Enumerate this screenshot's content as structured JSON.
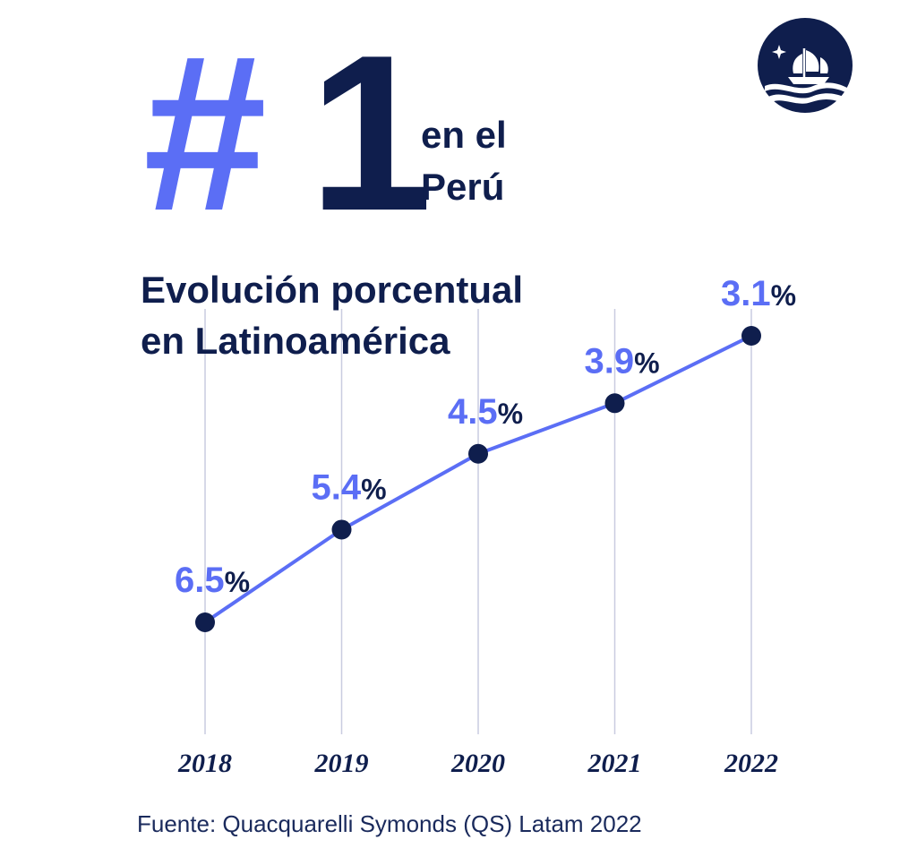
{
  "header": {
    "hash": "#",
    "rank": "1",
    "rank_line1": "en el",
    "rank_line2": "Perú"
  },
  "logo": {
    "icon": "ship-logo-icon"
  },
  "colors": {
    "accent": "#5b6ef5",
    "navy": "#0f1e4d",
    "grid": "#c9cce0"
  },
  "chart_data": {
    "type": "line",
    "title_line1": "Evolución porcentual",
    "title_line2": "en Latinoamérica",
    "categories": [
      "2018",
      "2019",
      "2020",
      "2021",
      "2022"
    ],
    "series": [
      {
        "values": [
          6.5,
          5.4,
          4.5,
          3.9,
          3.1
        ]
      }
    ],
    "value_labels": [
      "6.5",
      "5.4",
      "4.5",
      "3.9",
      "3.1"
    ],
    "unit": "%",
    "y_axis_inverted": true,
    "vertical_gridlines": true,
    "xlabel": "",
    "ylabel": ""
  },
  "source": "Fuente: Quacquarelli Symonds (QS)  Latam 2022"
}
